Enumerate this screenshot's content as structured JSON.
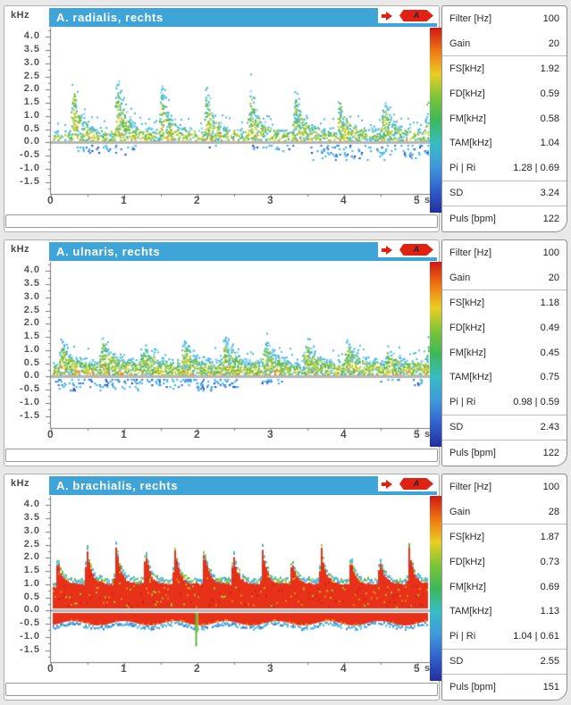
{
  "indicator": {
    "probe_label": "A"
  },
  "colors": {
    "title_bar": "#3fa5d8",
    "baseline": "#b6b6b6",
    "colorbar_stops": [
      "#d01616",
      "#ef7612",
      "#eace24",
      "#7cc437",
      "#3cb85a",
      "#38bdc4",
      "#3f98dc",
      "#3061cc",
      "#232e9c"
    ]
  },
  "sidebar_groups": [
    [
      0,
      1
    ],
    [
      2,
      3,
      4,
      5,
      6
    ],
    [
      7
    ],
    [
      8
    ]
  ],
  "panels": [
    {
      "title": "A. radialis, rechts",
      "freq_unit": "kHz",
      "time_unit": "s",
      "y_tick_labels": [
        "4.0",
        "3.5",
        "3.0",
        "2.5",
        "2.0",
        "1.5",
        "1.0",
        "0.5",
        "0.0",
        "-0.5",
        "-1.0",
        "-1.5"
      ],
      "x_tick_labels": [
        "0",
        "1",
        "2",
        "3",
        "4",
        "5"
      ],
      "params": [
        {
          "label": "Filter [Hz]",
          "value": "100"
        },
        {
          "label": "Gain",
          "value": "20"
        },
        {
          "label": "FS[kHz]",
          "value": "1.92"
        },
        {
          "label": "FD[kHz]",
          "value": "0.59"
        },
        {
          "label": "FM[kHz]",
          "value": "0.58"
        },
        {
          "label": "TAM[kHz]",
          "value": "1.04"
        },
        {
          "label": "Pi | Ri",
          "value": "1.28 | 0.69"
        },
        {
          "label": "SD",
          "value": "3.24"
        },
        {
          "label": "Puls [bpm]",
          "value": "122"
        }
      ]
    },
    {
      "title": "A. ulnaris, rechts",
      "freq_unit": "kHz",
      "time_unit": "s",
      "y_tick_labels": [
        "4.0",
        "3.5",
        "3.0",
        "2.5",
        "2.0",
        "1.5",
        "1.0",
        "0.5",
        "0.0",
        "-0.5",
        "-1.0",
        "-1.5"
      ],
      "x_tick_labels": [
        "0",
        "1",
        "2",
        "3",
        "4",
        "5"
      ],
      "params": [
        {
          "label": "Filter [Hz]",
          "value": "100"
        },
        {
          "label": "Gain",
          "value": "20"
        },
        {
          "label": "FS[kHz]",
          "value": "1.18"
        },
        {
          "label": "FD[kHz]",
          "value": "0.49"
        },
        {
          "label": "FM[kHz]",
          "value": "0.45"
        },
        {
          "label": "TAM[kHz]",
          "value": "0.75"
        },
        {
          "label": "Pi | Ri",
          "value": "0.98 | 0.59"
        },
        {
          "label": "SD",
          "value": "2.43"
        },
        {
          "label": "Puls [bpm]",
          "value": "122"
        }
      ]
    },
    {
      "title": "A. brachialis, rechts",
      "freq_unit": "kHz",
      "time_unit": "s",
      "y_tick_labels": [
        "4.0",
        "3.5",
        "3.0",
        "2.5",
        "2.0",
        "1.5",
        "1.0",
        "0.5",
        "0.0",
        "-0.5",
        "-1.0",
        "-1.5"
      ],
      "x_tick_labels": [
        "0",
        "1",
        "2",
        "3",
        "4",
        "5"
      ],
      "params": [
        {
          "label": "Filter [Hz]",
          "value": "100"
        },
        {
          "label": "Gain",
          "value": "28"
        },
        {
          "label": "FS[kHz]",
          "value": "1.87"
        },
        {
          "label": "FD[kHz]",
          "value": "0.73"
        },
        {
          "label": "FM[kHz]",
          "value": "0.69"
        },
        {
          "label": "TAM[kHz]",
          "value": "1.13"
        },
        {
          "label": "Pi | Ri",
          "value": "1.04 | 0.61"
        },
        {
          "label": "SD",
          "value": "2.55"
        },
        {
          "label": "Puls [bpm]",
          "value": "151"
        }
      ]
    }
  ],
  "chart_data": [
    {
      "type": "heatmap",
      "title": "A. radialis, rechts",
      "xlabel": "s",
      "ylabel": "kHz",
      "xlim": [
        0,
        5.3
      ],
      "ylim": [
        -1.95,
        4.35
      ],
      "x_ticks": [
        0,
        1,
        2,
        3,
        4,
        5
      ],
      "y_tick_step": 0.5,
      "baseline_khz": 0,
      "beats_per_s": 1.65,
      "t_first": 0.25,
      "systolic_peak_khz": 2.45,
      "end_peak_khz": 1.75,
      "diastolic_khz": 0.5,
      "reverse_segments": [
        {
          "t0": 0.35,
          "t1": 1.15,
          "depth_khz": 0.45
        },
        {
          "t0": 2.0,
          "t1": 2.25,
          "depth_khz": 0.2
        },
        {
          "t0": 2.75,
          "t1": 3.3,
          "depth_khz": 0.35
        },
        {
          "t0": 3.5,
          "t1": 5.15,
          "depth_khz": 0.65
        }
      ],
      "style": {
        "mode": "speckle",
        "seed": 7,
        "density": 0.52,
        "orange_prob": 0.05,
        "rev_density": 0.2,
        "decay": 5.5
      }
    },
    {
      "type": "heatmap",
      "title": "A. ulnaris, rechts",
      "xlabel": "s",
      "ylabel": "kHz",
      "xlim": [
        0,
        5.3
      ],
      "ylim": [
        -1.95,
        4.35
      ],
      "x_ticks": [
        0,
        1,
        2,
        3,
        4,
        5
      ],
      "y_tick_step": 0.5,
      "baseline_khz": 0,
      "beats_per_s": 1.8,
      "t_first": 0.1,
      "systolic_peak_khz": 1.5,
      "end_peak_khz": 1.4,
      "diastolic_khz": 0.62,
      "reverse_segments": [
        {
          "t0": 0.05,
          "t1": 2.55,
          "depth_khz": 0.5
        },
        {
          "t0": 2.85,
          "t1": 3.15,
          "depth_khz": 0.25
        },
        {
          "t0": 4.5,
          "t1": 4.75,
          "depth_khz": 0.2
        },
        {
          "t0": 4.95,
          "t1": 5.15,
          "depth_khz": 0.35
        }
      ],
      "style": {
        "mode": "speckle",
        "seed": 13,
        "density": 0.72,
        "orange_prob": 0.15,
        "rev_density": 0.3,
        "decay": 4.2
      }
    },
    {
      "type": "heatmap",
      "title": "A. brachialis, rechts",
      "xlabel": "s",
      "ylabel": "kHz",
      "xlim": [
        0,
        5.3
      ],
      "ylim": [
        -1.95,
        4.35
      ],
      "x_ticks": [
        0,
        1,
        2,
        3,
        4,
        5
      ],
      "y_tick_step": 0.5,
      "baseline_khz": 0,
      "beats_per_s": 2.5,
      "t_first": 0.05,
      "systolic_peak_khz": 2.2,
      "end_peak_khz": 2.25,
      "diastolic_khz": 1.0,
      "reverse_band": {
        "depth_khz": 0.48
      },
      "spike": {
        "t": 1.97,
        "depth_khz": 1.3
      },
      "reverse_segments": [],
      "style": {
        "mode": "solid",
        "seed": 21,
        "density": 1,
        "orange_prob": 0,
        "rev_density": 0,
        "decay": 6.5
      }
    }
  ]
}
